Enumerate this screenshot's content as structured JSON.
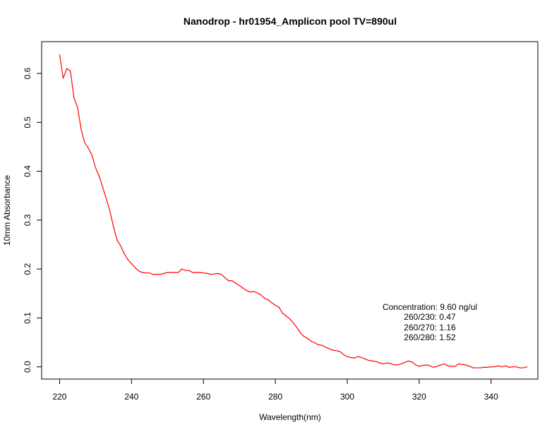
{
  "chart_data": {
    "type": "line",
    "title": "Nanodrop - hr01954_Amplicon pool TV=890ul",
    "xlabel": "Wavelength(nm)",
    "ylabel": "10mm Absorbance",
    "xlim": [
      215,
      353
    ],
    "ylim": [
      -0.025,
      0.665
    ],
    "xticks": [
      "220",
      "240",
      "260",
      "280",
      "300",
      "320",
      "340"
    ],
    "yticks": [
      "0.0",
      "0.1",
      "0.2",
      "0.3",
      "0.4",
      "0.5",
      "0.6"
    ],
    "grid": false,
    "legend": "none",
    "series": [
      {
        "color": "#ff0000",
        "x": [
          220,
          221,
          222,
          223,
          224,
          225,
          226,
          227,
          228,
          229,
          230,
          231,
          232,
          233,
          234,
          235,
          236,
          237,
          238,
          239,
          240,
          241,
          242,
          243,
          244,
          245,
          246,
          247,
          248,
          249,
          250,
          251,
          252,
          253,
          254,
          255,
          256,
          257,
          258,
          259,
          260,
          261,
          262,
          263,
          264,
          265,
          266,
          267,
          268,
          269,
          270,
          271,
          272,
          273,
          274,
          275,
          276,
          277,
          278,
          279,
          280,
          281,
          282,
          283,
          284,
          285,
          286,
          287,
          288,
          289,
          290,
          291,
          292,
          293,
          294,
          295,
          296,
          297,
          298,
          299,
          300,
          301,
          302,
          303,
          304,
          305,
          306,
          307,
          308,
          309,
          310,
          311,
          312,
          313,
          314,
          315,
          316,
          317,
          318,
          319,
          320,
          321,
          322,
          323,
          324,
          325,
          326,
          327,
          328,
          329,
          330,
          331,
          332,
          333,
          334,
          335,
          336,
          337,
          338,
          339,
          340,
          341,
          342,
          343,
          344,
          345,
          346,
          347,
          348,
          349,
          350
        ],
        "y": [
          0.638,
          0.59,
          0.61,
          0.605,
          0.55,
          0.53,
          0.485,
          0.458,
          0.447,
          0.433,
          0.407,
          0.39,
          0.367,
          0.343,
          0.318,
          0.286,
          0.259,
          0.247,
          0.231,
          0.219,
          0.211,
          0.203,
          0.196,
          0.193,
          0.192,
          0.192,
          0.189,
          0.189,
          0.189,
          0.191,
          0.193,
          0.193,
          0.193,
          0.193,
          0.2,
          0.197,
          0.197,
          0.193,
          0.193,
          0.193,
          0.192,
          0.191,
          0.189,
          0.19,
          0.191,
          0.189,
          0.182,
          0.176,
          0.176,
          0.171,
          0.166,
          0.161,
          0.156,
          0.153,
          0.154,
          0.151,
          0.147,
          0.14,
          0.137,
          0.131,
          0.126,
          0.122,
          0.11,
          0.104,
          0.098,
          0.09,
          0.08,
          0.069,
          0.062,
          0.058,
          0.052,
          0.049,
          0.045,
          0.044,
          0.04,
          0.037,
          0.034,
          0.033,
          0.031,
          0.025,
          0.021,
          0.019,
          0.018,
          0.021,
          0.019,
          0.016,
          0.013,
          0.012,
          0.011,
          0.008,
          0.006,
          0.008,
          0.007,
          0.004,
          0.004,
          0.006,
          0.009,
          0.012,
          0.01,
          0.004,
          0.001,
          0.003,
          0.004,
          0.002,
          -0.001,
          0.001,
          0.004,
          0.006,
          0.002,
          0.001,
          0.001,
          0.006,
          0.005,
          0.004,
          0.001,
          -0.002,
          -0.002,
          -0.002,
          -0.001,
          -0.001,
          0.0,
          0.0,
          0.002,
          0.0,
          0.002,
          -0.001,
          0.0,
          0.0,
          -0.002,
          -0.002,
          0.0
        ]
      }
    ],
    "annotation": {
      "lines": [
        "Concentration: 9.60 ng/ul",
        "260/230: 0.47",
        "260/270: 1.16",
        "260/280: 1.52"
      ]
    }
  }
}
